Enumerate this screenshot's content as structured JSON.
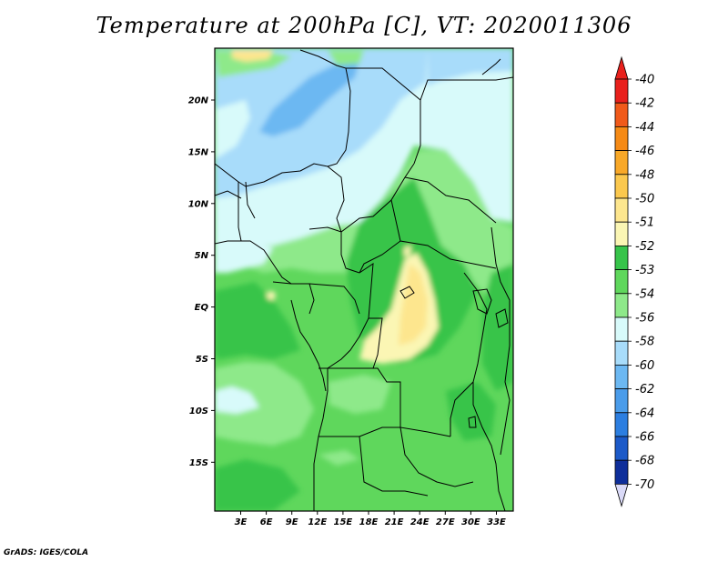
{
  "title": "Temperature at 200hPa [C], VT: 2020011306",
  "credit": "GrADS: IGES/COLA",
  "map": {
    "lat_labels": [
      "20N",
      "15N",
      "10N",
      "5N",
      "EQ",
      "5S",
      "10S",
      "15S"
    ],
    "lon_labels": [
      "3E",
      "6E",
      "9E",
      "12E",
      "15E",
      "18E",
      "21E",
      "24E",
      "27E",
      "30E",
      "33E"
    ]
  },
  "colorbar": {
    "labels": [
      "-40",
      "-42",
      "-44",
      "-46",
      "-48",
      "-50",
      "-51",
      "-52",
      "-53",
      "-54",
      "-56",
      "-58",
      "-60",
      "-62",
      "-64",
      "-66",
      "-68",
      "-70"
    ],
    "colors": [
      "#e8201c",
      "#f05a1a",
      "#f58a16",
      "#f8a828",
      "#fbc84e",
      "#fde68e",
      "#fbf6b4",
      "#37c44a",
      "#5fd75c",
      "#8ee98a",
      "#d8fafa",
      "#a8dcfa",
      "#6cb8f2",
      "#4a9cea",
      "#2c7ee0",
      "#1c5ac8",
      "#0e2e9a",
      "#0a1a6c"
    ],
    "top_arrow_color": "#e8201c",
    "bottom_arrow_color": "#dadaf8"
  }
}
